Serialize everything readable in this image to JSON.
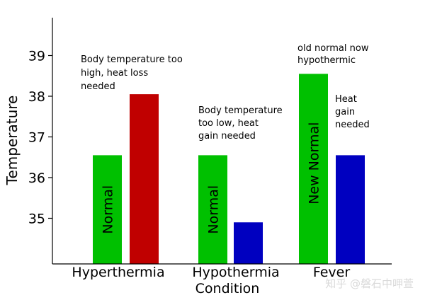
{
  "chart_data": {
    "type": "bar",
    "ylabel": "Temperature",
    "xlabel": "Condition",
    "ylim": [
      34.0,
      40.0
    ],
    "yticks": [
      35,
      36,
      37,
      38,
      39
    ],
    "grid": false,
    "categories": [
      "Hyperthermia",
      "Hypothermia",
      "Fever"
    ],
    "bars": [
      {
        "category": "Hyperthermia",
        "value": 36.55,
        "color": "#00c000",
        "label": "Normal"
      },
      {
        "category": "Hyperthermia",
        "value": 38.05,
        "color": "#c00000",
        "label": ""
      },
      {
        "category": "Hypothermia",
        "value": 36.55,
        "color": "#00c000",
        "label": "Normal"
      },
      {
        "category": "Hypothermia",
        "value": 34.9,
        "color": "#0000c0",
        "label": ""
      },
      {
        "category": "Fever",
        "value": 38.55,
        "color": "#00c000",
        "label": "New Normal"
      },
      {
        "category": "Fever",
        "value": 36.55,
        "color": "#0000c0",
        "label": ""
      }
    ],
    "annotations": [
      {
        "lines": [
          "Body temperature too",
          "high, heat loss",
          "needed"
        ]
      },
      {
        "lines": [
          "Body temperature",
          "too low, heat",
          "gain needed"
        ]
      },
      {
        "lines": [
          "old normal now",
          "hypothermic"
        ]
      },
      {
        "lines": [
          "Heat",
          "gain",
          "needed"
        ]
      }
    ]
  },
  "watermark": "知乎 @磐石中呷萱"
}
